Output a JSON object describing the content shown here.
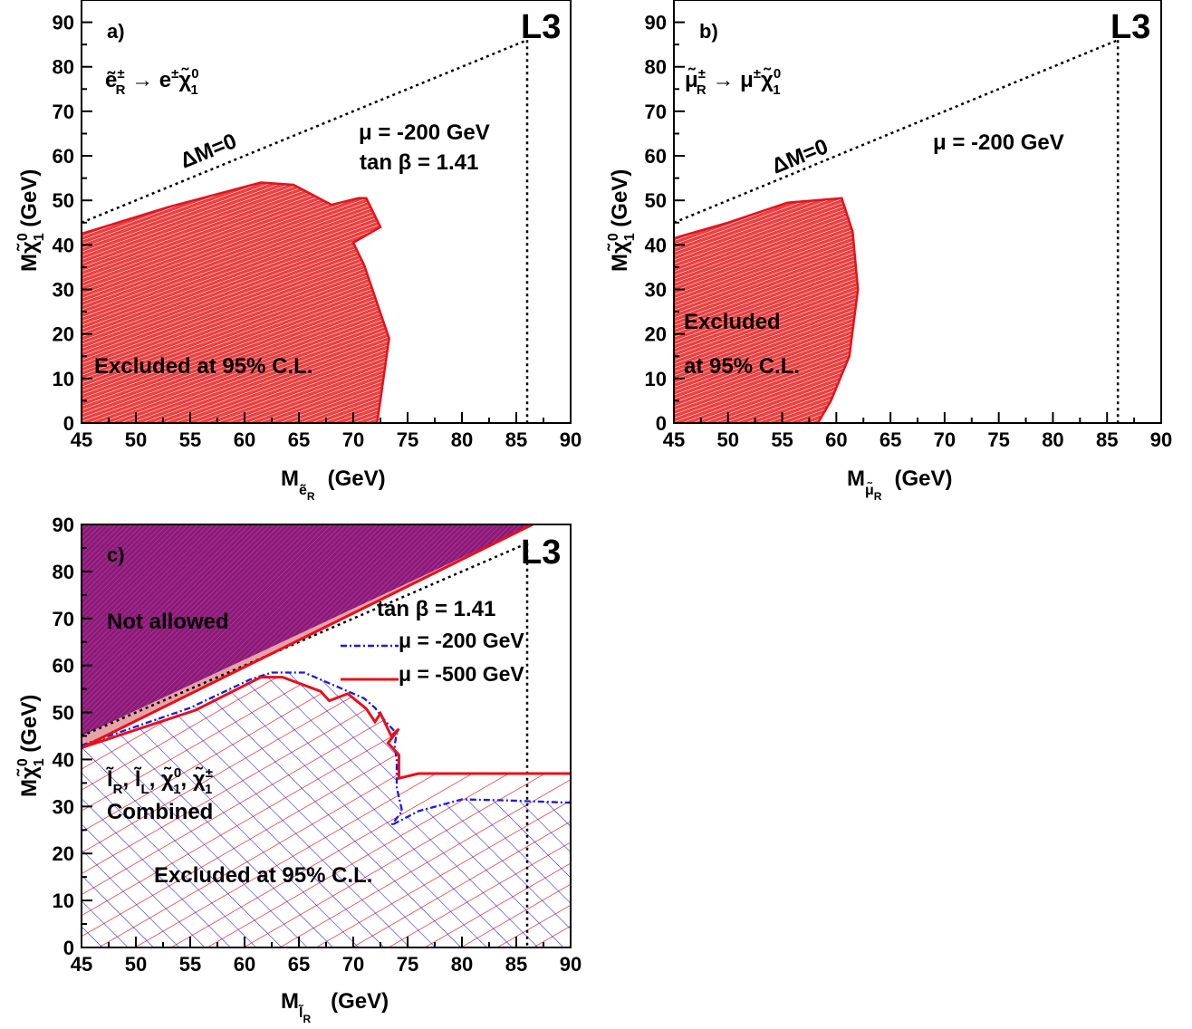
{
  "colors": {
    "excluded_red": "#e8101a",
    "not_allowed_purple": "#8b1a78",
    "mu200_blue": "#1a1ae6",
    "mu500_red": "#e8101a",
    "axis": "#000000"
  },
  "experiment_label": "L3",
  "chart_data": [
    {
      "type": "area",
      "panel": "a)",
      "process": "ẽR± → e±χ̃10",
      "xlabel": "Mẽ_R   (GeV)",
      "ylabel": "Mχ̃10 (GeV)",
      "xlim": [
        45,
        90
      ],
      "ylim": [
        0,
        95
      ],
      "x_ticks": [
        45,
        50,
        55,
        60,
        65,
        70,
        75,
        80,
        85,
        90
      ],
      "y_ticks": [
        0,
        10,
        20,
        30,
        40,
        50,
        60,
        70,
        80,
        90
      ],
      "kinematic_line": {
        "label": "ΔM=0",
        "points": [
          [
            45,
            45
          ],
          [
            86,
            86
          ]
        ]
      },
      "kinematic_limit_x": 86,
      "annotations": [
        "μ = -200 GeV",
        "tan β = 1.41"
      ],
      "excluded_region": {
        "label": "Excluded at 95% C.L.",
        "points": [
          [
            45,
            42.5
          ],
          [
            53,
            48.5
          ],
          [
            61.5,
            54
          ],
          [
            64.5,
            53.5
          ],
          [
            68,
            49
          ],
          [
            70.5,
            50.5
          ],
          [
            71.2,
            50.5
          ],
          [
            72.5,
            44
          ],
          [
            70,
            40.5
          ],
          [
            71,
            35.5
          ],
          [
            73.3,
            19
          ],
          [
            72.2,
            0
          ],
          [
            45,
            0
          ]
        ]
      }
    },
    {
      "type": "area",
      "panel": "b)",
      "process": "μ̃R± → μ±χ̃10",
      "xlabel": "Mμ̃_R   (GeV)",
      "ylabel": "Mχ̃10 (GeV)",
      "xlim": [
        45,
        90
      ],
      "ylim": [
        0,
        95
      ],
      "x_ticks": [
        45,
        50,
        55,
        60,
        65,
        70,
        75,
        80,
        85,
        90
      ],
      "y_ticks": [
        0,
        10,
        20,
        30,
        40,
        50,
        60,
        70,
        80,
        90
      ],
      "kinematic_line": {
        "label": "ΔM=0",
        "points": [
          [
            45,
            45
          ],
          [
            86,
            86
          ]
        ]
      },
      "kinematic_limit_x": 86,
      "annotations": [
        "μ = -200 GeV"
      ],
      "excluded_region": {
        "label_line1": "Excluded",
        "label_line2": "at 95% C.L.",
        "points": [
          [
            45,
            41.5
          ],
          [
            50,
            45
          ],
          [
            55.5,
            49.5
          ],
          [
            60.5,
            50.5
          ],
          [
            61.5,
            43
          ],
          [
            62,
            30
          ],
          [
            61.2,
            15
          ],
          [
            59.5,
            5
          ],
          [
            58.3,
            0
          ],
          [
            45,
            0
          ]
        ]
      }
    },
    {
      "type": "area",
      "panel": "c)",
      "xlabel": "Ml̃_R   (GeV)",
      "ylabel": "Mχ̃10 (GeV)",
      "xlim": [
        45,
        90
      ],
      "ylim": [
        0,
        90
      ],
      "x_ticks": [
        45,
        50,
        55,
        60,
        65,
        70,
        75,
        80,
        85,
        90
      ],
      "y_ticks": [
        0,
        10,
        20,
        30,
        40,
        50,
        60,
        70,
        80,
        90
      ],
      "kinematic_line": {
        "points": [
          [
            45,
            45
          ],
          [
            86,
            86
          ]
        ]
      },
      "kinematic_limit_x": 86,
      "annotations": [
        "tan β = 1.41"
      ],
      "legend": [
        {
          "label": "μ = -200 GeV",
          "style": "dash-dot",
          "color": "#1a1ae6"
        },
        {
          "label": "μ = -500 GeV",
          "style": "solid",
          "color": "#e8101a"
        }
      ],
      "not_allowed_region": {
        "label": "Not allowed",
        "points": [
          [
            45,
            42.5
          ],
          [
            45,
            90
          ],
          [
            86.5,
            90
          ]
        ]
      },
      "combined_label": [
        "l̃R, l̃L, χ̃10, χ̃1±",
        "Combined"
      ],
      "excluded_label": "Excluded at 95% C.L.",
      "series": [
        {
          "name": "μ = -200 GeV",
          "points": [
            [
              45,
              43
            ],
            [
              55,
              51
            ],
            [
              60.5,
              57
            ],
            [
              62.5,
              58.5
            ],
            [
              65.5,
              58.5
            ],
            [
              69,
              55
            ],
            [
              71,
              53
            ],
            [
              72,
              51
            ],
            [
              73,
              48
            ],
            [
              74,
              45.5
            ],
            [
              73.8,
              43
            ],
            [
              74,
              40
            ],
            [
              74,
              34
            ],
            [
              74.5,
              29
            ],
            [
              73.5,
              26
            ],
            [
              76,
              29
            ],
            [
              80,
              31.5
            ],
            [
              84,
              31.3
            ],
            [
              90,
              30.8
            ]
          ]
        },
        {
          "name": "μ = -500 GeV",
          "points": [
            [
              45,
              42.5
            ],
            [
              55.5,
              50.5
            ],
            [
              61.5,
              57.5
            ],
            [
              63.5,
              57.5
            ],
            [
              67,
              54.5
            ],
            [
              67.8,
              52.5
            ],
            [
              69.5,
              54
            ],
            [
              71.2,
              50.8
            ],
            [
              72,
              48
            ],
            [
              72.5,
              49.8
            ],
            [
              73.5,
              45
            ],
            [
              74.2,
              46.5
            ],
            [
              73.2,
              43.5
            ],
            [
              74.2,
              41
            ],
            [
              74.2,
              36
            ],
            [
              76,
              37
            ],
            [
              90,
              37
            ],
            [
              90,
              0
            ],
            [
              45,
              0
            ]
          ]
        }
      ]
    }
  ]
}
